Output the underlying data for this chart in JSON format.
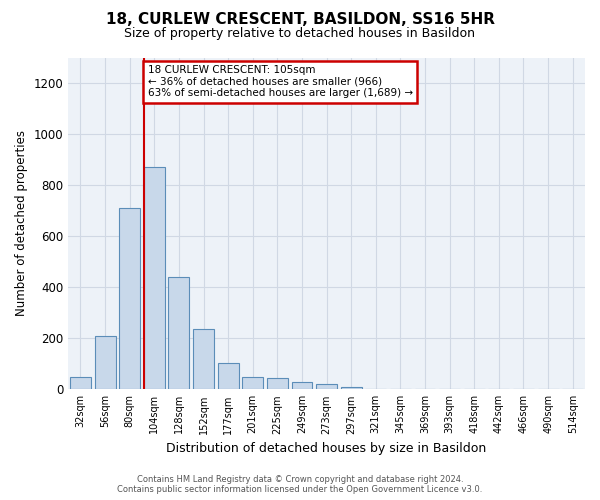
{
  "title": "18, CURLEW CRESCENT, BASILDON, SS16 5HR",
  "subtitle": "Size of property relative to detached houses in Basildon",
  "xlabel": "Distribution of detached houses by size in Basildon",
  "ylabel": "Number of detached properties",
  "footer_line1": "Contains HM Land Registry data © Crown copyright and database right 2024.",
  "footer_line2": "Contains public sector information licensed under the Open Government Licence v3.0.",
  "categories": [
    "32sqm",
    "56sqm",
    "80sqm",
    "104sqm",
    "128sqm",
    "152sqm",
    "177sqm",
    "201sqm",
    "225sqm",
    "249sqm",
    "273sqm",
    "297sqm",
    "321sqm",
    "345sqm",
    "369sqm",
    "393sqm",
    "418sqm",
    "442sqm",
    "466sqm",
    "490sqm",
    "514sqm"
  ],
  "values": [
    50,
    210,
    710,
    870,
    440,
    235,
    105,
    50,
    45,
    30,
    20,
    10,
    0,
    0,
    0,
    0,
    0,
    0,
    0,
    0,
    0
  ],
  "bar_color": "#c8d8ea",
  "bar_edge_color": "#5b8db8",
  "ylim": [
    0,
    1300
  ],
  "yticks": [
    0,
    200,
    400,
    600,
    800,
    1000,
    1200
  ],
  "property_label": "18 CURLEW CRESCENT: 105sqm",
  "annotation_line1": "← 36% of detached houses are smaller (966)",
  "annotation_line2": "63% of semi-detached houses are larger (1,689) →",
  "vline_x_index": 3,
  "annotation_box_color": "#ffffff",
  "annotation_box_edge": "#cc0000",
  "vline_color": "#cc0000",
  "grid_color": "#d0d8e4",
  "background_color": "#edf2f8"
}
